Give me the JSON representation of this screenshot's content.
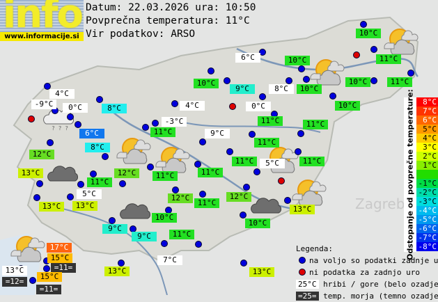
{
  "header": {
    "logo_text": "info",
    "site": "www.informacije.si",
    "date_line": "Datum: 22.03.2026 ura: 10:50",
    "avg_line": "Povprečna temperatura: 11°C",
    "source_line": "Vir podatkov: ARSO"
  },
  "colors": {
    "green": "#22e022",
    "lime": "#66dd22",
    "yellow": "#ccf000",
    "cyan": "#22eedd",
    "lightcyan": "#22eeee",
    "blue": "#1177ee",
    "white": "#ffffff",
    "orange": "#ff6611",
    "amber": "#ffbb00",
    "dark": "#333333",
    "dot_blue": "#0000dd",
    "dot_red": "#dd0000"
  },
  "labels": [
    {
      "text": "10°C",
      "bg": "#22e022"
    },
    {
      "text": "11°C",
      "bg": "#22e022"
    },
    {
      "text": "6°C",
      "bg": "#ffffff"
    },
    {
      "text": "10°C",
      "bg": "#22e022"
    },
    {
      "text": "10°C",
      "bg": "#22e022"
    },
    {
      "text": "9°C",
      "bg": "#22eecc"
    },
    {
      "text": "8°C",
      "bg": "#ffffff"
    },
    {
      "text": "10°C",
      "bg": "#22e022"
    },
    {
      "text": "10°C",
      "bg": "#22e022"
    },
    {
      "text": "11°C",
      "bg": "#22e022"
    },
    {
      "text": "10°C",
      "bg": "#22e022"
    },
    {
      "text": "4°C",
      "bg": "#ffffff"
    },
    {
      "text": "-9°C",
      "bg": "#ffffff"
    },
    {
      "text": "0°C",
      "bg": "#ffffff"
    },
    {
      "text": "8°C",
      "bg": "#22eeee"
    },
    {
      "text": "4°C",
      "bg": "#ffffff"
    },
    {
      "text": "0°C",
      "bg": "#ffffff"
    },
    {
      "text": "-3°C",
      "bg": "#ffffff"
    },
    {
      "text": "11°C",
      "bg": "#22e022"
    },
    {
      "text": "11°C",
      "bg": "#22e022"
    },
    {
      "text": "6°C",
      "bg": "#1177ee"
    },
    {
      "text": "11°C",
      "bg": "#22e022"
    },
    {
      "text": "9°C",
      "bg": "#ffffff"
    },
    {
      "text": "11°C",
      "bg": "#22e022"
    },
    {
      "text": "8°C",
      "bg": "#22eeee"
    },
    {
      "text": "12°C",
      "bg": "#66dd22"
    },
    {
      "text": "11°C",
      "bg": "#22e022"
    },
    {
      "text": "5°C",
      "bg": "#ffffff"
    },
    {
      "text": "11°C",
      "bg": "#22e022"
    },
    {
      "text": "13°C",
      "bg": "#ccf000"
    },
    {
      "text": "12°C",
      "bg": "#66dd22"
    },
    {
      "text": "11°C",
      "bg": "#22e022"
    },
    {
      "text": "11°C",
      "bg": "#22e022"
    },
    {
      "text": "11°C",
      "bg": "#22e022"
    },
    {
      "text": "5°C",
      "bg": "#ffffff"
    },
    {
      "text": "12°C",
      "bg": "#66dd22"
    },
    {
      "text": "11°C",
      "bg": "#22e022"
    },
    {
      "text": "12°C",
      "bg": "#66dd22"
    },
    {
      "text": "13°C",
      "bg": "#ccf000"
    },
    {
      "text": "13°C",
      "bg": "#ccf000"
    },
    {
      "text": "13°C",
      "bg": "#ccf000"
    },
    {
      "text": "10°C",
      "bg": "#22e022"
    },
    {
      "text": "10°C",
      "bg": "#22e022"
    },
    {
      "text": "9°C",
      "bg": "#22eecc"
    },
    {
      "text": "9°C",
      "bg": "#22eecc"
    },
    {
      "text": "11°C",
      "bg": "#22e022"
    },
    {
      "text": "17°C",
      "bg": "#ff6611"
    },
    {
      "text": "15°C",
      "bg": "#ffbb00"
    },
    {
      "text": "=11=",
      "bg": "#333333"
    },
    {
      "text": "13°C",
      "bg": "#ffffff"
    },
    {
      "text": "=12=",
      "bg": "#333333"
    },
    {
      "text": "15°C",
      "bg": "#ffbb00"
    },
    {
      "text": "=11=",
      "bg": "#333333"
    },
    {
      "text": "7°C",
      "bg": "#ffffff"
    },
    {
      "text": "13°C",
      "bg": "#ccf000"
    },
    {
      "text": "13°C",
      "bg": "#ccf000"
    }
  ],
  "scale": {
    "title": "Odstopanje od povprečne temperature:",
    "cells": [
      {
        "label": "8°C",
        "color": "#ff0000"
      },
      {
        "label": "7°C",
        "color": "#ff3300"
      },
      {
        "label": "6°C",
        "color": "#ff6600"
      },
      {
        "label": "5°C",
        "color": "#ff9900"
      },
      {
        "label": "4°C",
        "color": "#ffcc00"
      },
      {
        "label": "3°C",
        "color": "#ffff00"
      },
      {
        "label": "2°C",
        "color": "#ccff00"
      },
      {
        "label": "1°C",
        "color": "#88ee00"
      },
      {
        "label": "",
        "color": "#22dd00"
      },
      {
        "label": "-1°C",
        "color": "#00dd44"
      },
      {
        "label": "-2°C",
        "color": "#00ddaa"
      },
      {
        "label": "-3°C",
        "color": "#00dddd"
      },
      {
        "label": "-4°C",
        "color": "#00bbee"
      },
      {
        "label": "-5°C",
        "color": "#0099ee"
      },
      {
        "label": "-6°C",
        "color": "#0066ee"
      },
      {
        "label": "-7°C",
        "color": "#0033ee"
      },
      {
        "label": "-8°C",
        "color": "#0000ee"
      }
    ]
  },
  "legend": {
    "title": "Legenda:",
    "blue_dot": "na voljo so podatki zadnje ure",
    "red_dot": "ni podatka za zadnjo uro",
    "mountain_sample": "25°C",
    "mountain_text": "hribi / gore (belo ozadje)",
    "sea_sample": "=25=",
    "sea_text": "temp. morja (temno ozadje)"
  }
}
